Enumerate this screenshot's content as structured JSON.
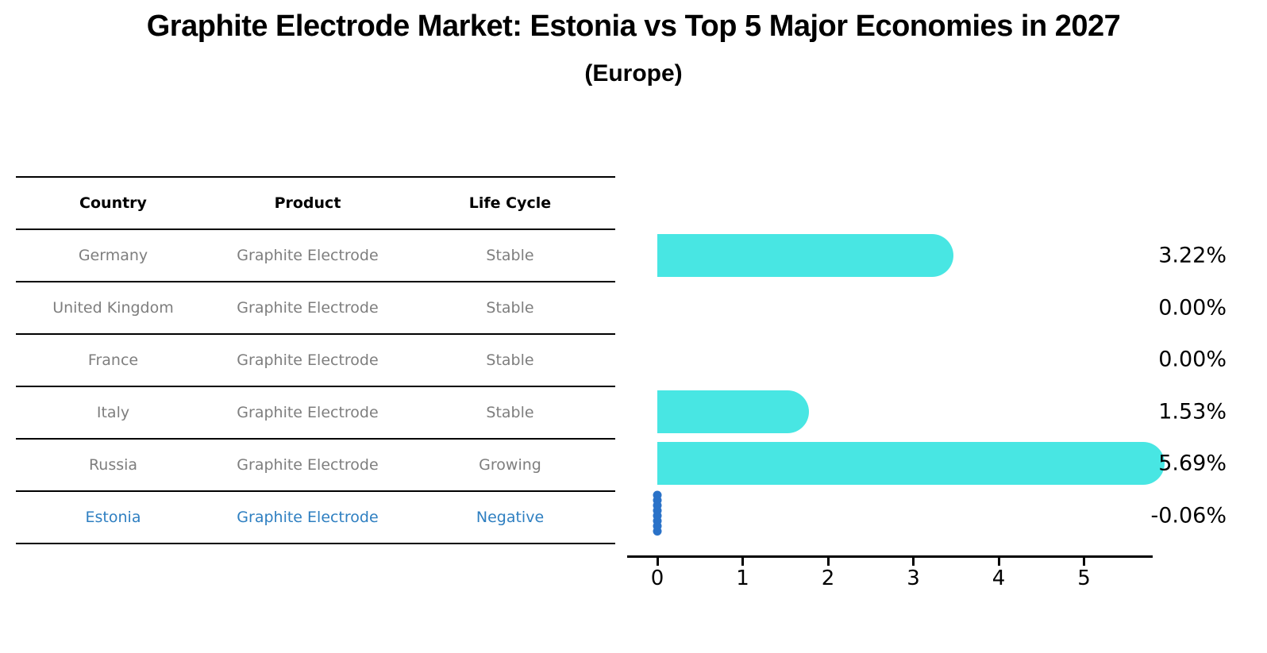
{
  "title": "Graphite Electrode Market: Estonia vs Top 5 Major Economies in 2027",
  "subtitle": "(Europe)",
  "table": {
    "headers": [
      "Country",
      "Product",
      "Life Cycle"
    ],
    "rows": [
      {
        "country": "Germany",
        "product": "Graphite Electrode",
        "life_cycle": "Stable",
        "highlight": false
      },
      {
        "country": "United Kingdom",
        "product": "Graphite Electrode",
        "life_cycle": "Stable",
        "highlight": false
      },
      {
        "country": "France",
        "product": "Graphite Electrode",
        "life_cycle": "Stable",
        "highlight": false
      },
      {
        "country": "Italy",
        "product": "Graphite Electrode",
        "life_cycle": "Stable",
        "highlight": false
      },
      {
        "country": "Russia",
        "product": "Graphite Electrode",
        "life_cycle": "Growing",
        "highlight": false
      },
      {
        "country": "Estonia",
        "product": "Graphite Electrode",
        "life_cycle": "Negative",
        "highlight": true
      }
    ]
  },
  "chart_data": {
    "type": "bar",
    "orientation": "horizontal",
    "title": "Graphite Electrode Market: Estonia vs Top 5 Major Economies in 2027 (Europe)",
    "categories": [
      "Germany",
      "United Kingdom",
      "France",
      "Italy",
      "Russia",
      "Estonia"
    ],
    "values": [
      3.22,
      0.0,
      0.0,
      1.53,
      5.69,
      -0.06
    ],
    "value_labels": [
      "3.22%",
      "0.00%",
      "0.00%",
      "1.53%",
      "5.69%",
      "-0.06%"
    ],
    "xticks": [
      0,
      1,
      2,
      3,
      4,
      5
    ],
    "xlim": [
      -0.36,
      5.8
    ],
    "grid": false,
    "bar_color": "#48E6E3",
    "negative_bar_color": "#2A72C8"
  },
  "colors": {
    "background": "#FFFFFF",
    "text": "#000000",
    "table_text": "#7E7E7E",
    "highlight_text": "#2E7FC1",
    "bar": "#48E6E3",
    "negative": "#2A72C8",
    "axis": "#000000"
  }
}
